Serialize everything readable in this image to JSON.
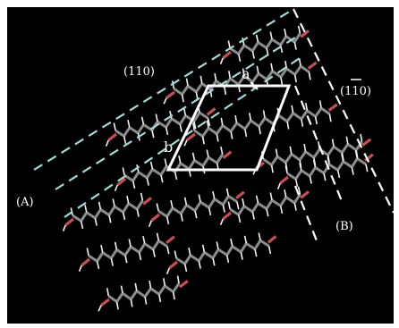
{
  "colors": {
    "background": "#000000",
    "plane_dash_left": "#a9d6d6",
    "plane_dash_right": "#ffffff",
    "unit_cell": "#ffffff",
    "carbon": "#8c8c8c",
    "oxygen": "#c0505a",
    "hydrogen": "#f2f2f2"
  },
  "labels": {
    "plane_left": "(110)",
    "plane_right": "(110)",
    "region_a": "(A)",
    "region_b": "(B)",
    "axis_a": "a",
    "axis_b": "b"
  },
  "molecules": {
    "description": "rows of stick-model molecular chains in a crystal lattice",
    "rows": 8
  }
}
